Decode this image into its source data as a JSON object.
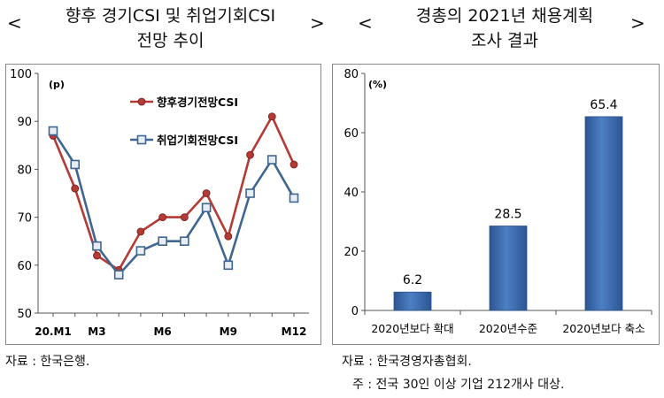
{
  "left_panel": {
    "title": "향후 경기CSI 및 취업기회CSI\n전망 추이",
    "bracket_left": "<",
    "bracket_right": ">",
    "source": "자료 : 한국은행."
  },
  "right_panel": {
    "title": "경총의 2021년 채용계획\n조사 결과",
    "bracket_left": "<",
    "bracket_right": ">",
    "source": "자료 : 한국경영자총협회.",
    "note": "주 : 전국 30인 이상 기업 212개사 대상."
  },
  "colors": {
    "series1": "#b53a35",
    "series2": "#3f6690",
    "bar": "#4d7fc4",
    "bar_dark": "#2c5593",
    "axis": "#555555"
  },
  "chart_data": [
    {
      "type": "line",
      "title": "향후 경기CSI 및 취업기회CSI 전망 추이",
      "unit_label": "(p)",
      "x": [
        1,
        2,
        3,
        4,
        5,
        6,
        7,
        8,
        9,
        10,
        11,
        12
      ],
      "x_tick_labels": [
        {
          "x": 1,
          "label": "20.M1"
        },
        {
          "x": 3,
          "label": "M3"
        },
        {
          "x": 6,
          "label": "M6"
        },
        {
          "x": 9,
          "label": "M9"
        },
        {
          "x": 12,
          "label": "M12"
        }
      ],
      "ylim": [
        50,
        100
      ],
      "y_ticks": [
        50,
        60,
        70,
        80,
        90,
        100
      ],
      "series": [
        {
          "name": "향후경기전망CSI",
          "marker": "circle",
          "values": [
            87,
            76,
            62,
            59,
            67,
            70,
            70,
            75,
            66,
            83,
            91,
            81
          ]
        },
        {
          "name": "취업기회전망CSI",
          "marker": "square",
          "values": [
            88,
            81,
            64,
            58,
            63,
            65,
            65,
            72,
            60,
            75,
            82,
            74
          ]
        }
      ],
      "legend_position": "upper-center"
    },
    {
      "type": "bar",
      "title": "경총의 2021년 채용계획 조사 결과",
      "unit_label": "(%)",
      "categories": [
        "2020년보다 확대",
        "2020년수준",
        "2020년보다 축소"
      ],
      "values": [
        6.2,
        28.5,
        65.4
      ],
      "data_labels": [
        "6.2",
        "28.5",
        "65.4"
      ],
      "ylim": [
        0,
        80
      ],
      "y_ticks": [
        0,
        20,
        40,
        60,
        80
      ]
    }
  ]
}
